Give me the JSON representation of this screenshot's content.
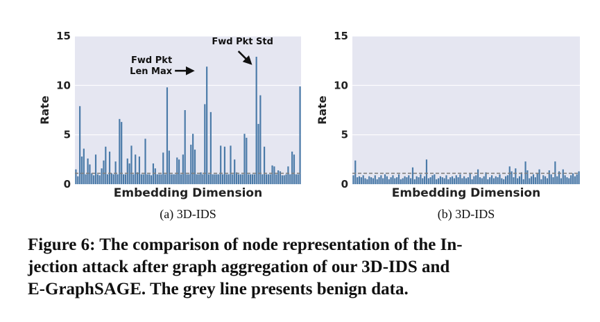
{
  "chart_data": [
    {
      "type": "bar",
      "title": "",
      "subtitle": "(a) 3D-IDS",
      "xlabel": "Embedding Dimension",
      "ylabel": "Rate",
      "ylim": [
        0,
        15
      ],
      "yticks": [
        "0",
        "5",
        "10",
        "15"
      ],
      "benign_line": 1.1,
      "values": [
        1.5,
        0.8,
        7.9,
        2.8,
        3.6,
        1.0,
        2.6,
        2.0,
        1.1,
        0.9,
        3.0,
        1.0,
        0.9,
        1.6,
        2.4,
        3.8,
        1.0,
        3.3,
        1.1,
        1.0,
        2.3,
        1.0,
        6.6,
        6.3,
        1.0,
        1.0,
        2.6,
        2.1,
        3.9,
        1.0,
        3.0,
        1.2,
        2.8,
        1.0,
        1.0,
        4.6,
        1.0,
        1.0,
        0.9,
        2.1,
        1.6,
        1.0,
        1.0,
        1.0,
        3.2,
        1.0,
        9.8,
        3.4,
        1.0,
        1.0,
        1.0,
        2.7,
        2.5,
        1.0,
        3.0,
        7.5,
        1.0,
        1.0,
        4.0,
        5.1,
        3.5,
        1.0,
        1.0,
        1.2,
        1.0,
        8.1,
        11.9,
        1.0,
        7.3,
        1.0,
        1.0,
        1.0,
        1.0,
        3.9,
        1.0,
        3.8,
        1.0,
        1.0,
        3.9,
        1.0,
        2.5,
        1.2,
        1.0,
        1.0,
        1.0,
        5.1,
        4.7,
        1.0,
        1.0,
        1.0,
        1.0,
        12.9,
        6.1,
        9.0,
        1.0,
        3.8,
        1.0,
        1.0,
        1.0,
        1.9,
        1.8,
        1.0,
        1.4,
        1.3,
        0.9,
        0.9,
        1.0,
        1.8,
        1.0,
        3.3,
        3.0,
        1.0,
        1.0,
        9.9
      ],
      "annotations": [
        {
          "text": [
            "Fwd Pkt",
            "Len Max"
          ],
          "bar_index": 66,
          "arrow": "right"
        },
        {
          "text": [
            "Fwd Pkt Std"
          ],
          "bar_index": 91,
          "arrow": "down-right"
        }
      ]
    },
    {
      "type": "bar",
      "title": "",
      "subtitle": "(b) 3D-IDS",
      "xlabel": "Embedding Dimension",
      "ylabel": "Rate",
      "ylim": [
        0,
        15
      ],
      "yticks": [
        "0",
        "5",
        "10",
        "15"
      ],
      "benign_line": 1.1,
      "values": [
        0.9,
        2.4,
        0.7,
        0.8,
        0.7,
        0.9,
        0.6,
        0.5,
        0.8,
        0.7,
        0.6,
        0.9,
        0.5,
        0.7,
        0.9,
        0.6,
        1.0,
        0.8,
        0.5,
        0.7,
        0.9,
        0.6,
        0.7,
        1.0,
        0.5,
        0.6,
        0.8,
        0.7,
        0.9,
        0.6,
        1.7,
        0.5,
        0.8,
        0.7,
        1.0,
        0.6,
        0.8,
        2.5,
        0.6,
        0.7,
        0.9,
        1.0,
        0.5,
        0.6,
        0.8,
        0.7,
        0.6,
        0.9,
        0.5,
        0.7,
        0.8,
        0.6,
        0.9,
        0.7,
        1.0,
        0.6,
        0.8,
        0.6,
        0.7,
        1.1,
        0.5,
        0.8,
        0.9,
        1.5,
        0.7,
        0.6,
        0.8,
        1.2,
        0.5,
        0.7,
        0.9,
        0.6,
        0.8,
        0.7,
        1.0,
        0.6,
        0.5,
        0.8,
        0.9,
        1.8,
        1.3,
        0.7,
        1.6,
        0.6,
        0.8,
        1.2,
        0.5,
        2.3,
        1.4,
        0.6,
        0.8,
        1.0,
        0.7,
        1.1,
        1.5,
        0.5,
        0.9,
        0.8,
        0.6,
        1.4,
        1.0,
        0.7,
        2.3,
        0.8,
        1.3,
        0.6,
        1.5,
        0.9,
        0.7,
        0.6,
        0.9,
        1.1,
        0.8,
        1.0,
        1.3
      ]
    }
  ],
  "caption": {
    "lines": [
      "Figure 6: The comparison of node representation of the In-",
      "jection attack after graph aggregation of our 3D-IDS and",
      "E-GraphSAGE. The grey line presents benign data."
    ]
  },
  "colors": {
    "panel_bg": "#e5e6f1",
    "bar": "#4a7aa8",
    "bar_edge": "#2f5f8f",
    "benign_line": "#808080",
    "text": "#222222"
  }
}
